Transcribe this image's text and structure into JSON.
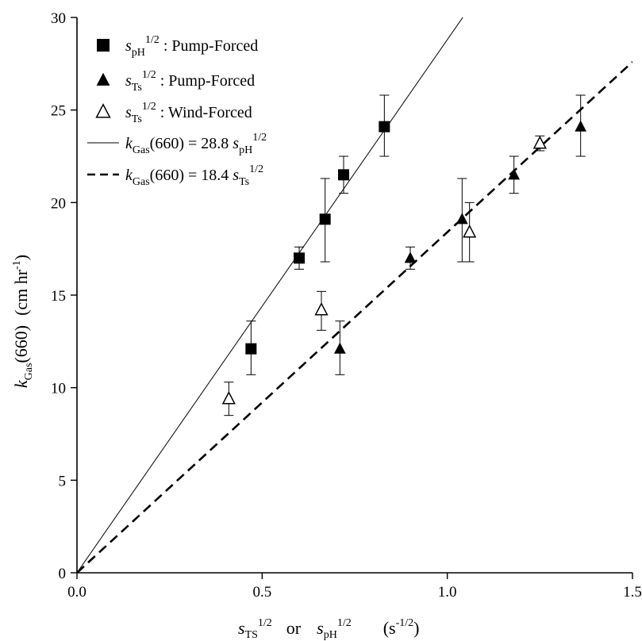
{
  "chart_data": {
    "type": "scatter",
    "xlim": [
      0,
      1.5
    ],
    "ylim": [
      0,
      30
    ],
    "x_ticks": [
      0,
      0.5,
      1,
      1.5
    ],
    "x_tick_labels": [
      "0.0",
      "0.5",
      "1.0",
      "1.5"
    ],
    "y_ticks": [
      0,
      5,
      10,
      15,
      20,
      25,
      30
    ],
    "y_tick_labels": [
      "0",
      "5",
      "10",
      "15",
      "20",
      "25",
      "30"
    ],
    "xlabel": {
      "part1_base": "s",
      "part1_sub": "TS",
      "part1_sup": "1/2",
      "or": "or",
      "part2_base": "s",
      "part2_sub": "pH",
      "part2_sup": "1/2",
      "unit_open": "(s",
      "unit_sup": "-1/2",
      "unit_close": ")"
    },
    "ylabel": {
      "base": "k",
      "sub": "Gas",
      "rest": "(660)",
      "unit_open": "(cm hr",
      "unit_sup": "-1",
      "unit_close": ")"
    },
    "grid": false,
    "legend_position": "top-left",
    "series": [
      {
        "marker": "filled-square",
        "legend": {
          "base": "s",
          "sub": "pH",
          "sup": "1/2",
          "text": " : Pump-Forced"
        },
        "points": [
          {
            "x": 0.47,
            "y": 12.1,
            "err_low": 10.7,
            "err_high": 13.6
          },
          {
            "x": 0.6,
            "y": 17.0,
            "err_low": 16.4,
            "err_high": 17.6
          },
          {
            "x": 0.67,
            "y": 19.1,
            "err_low": 16.8,
            "err_high": 21.3
          },
          {
            "x": 0.72,
            "y": 21.5,
            "err_low": 20.5,
            "err_high": 22.5
          },
          {
            "x": 0.83,
            "y": 24.1,
            "err_low": 22.5,
            "err_high": 25.8
          }
        ]
      },
      {
        "marker": "filled-triangle",
        "legend": {
          "base": "s",
          "sub": "Ts",
          "sup": "1/2",
          "text": " : Pump-Forced"
        },
        "points": [
          {
            "x": 0.71,
            "y": 12.1,
            "err_low": 10.7,
            "err_high": 13.6
          },
          {
            "x": 0.9,
            "y": 17.0,
            "err_low": 16.4,
            "err_high": 17.6
          },
          {
            "x": 1.04,
            "y": 19.1,
            "err_low": 16.8,
            "err_high": 21.3
          },
          {
            "x": 1.18,
            "y": 21.5,
            "err_low": 20.5,
            "err_high": 22.5
          },
          {
            "x": 1.36,
            "y": 24.1,
            "err_low": 22.5,
            "err_high": 25.8
          }
        ]
      },
      {
        "marker": "open-triangle",
        "legend": {
          "base": "s",
          "sub": "Ts",
          "sup": "1/2",
          "text": " : Wind-Forced"
        },
        "points": [
          {
            "x": 0.41,
            "y": 9.4,
            "err_low": 8.5,
            "err_high": 10.3
          },
          {
            "x": 0.66,
            "y": 14.2,
            "err_low": 13.1,
            "err_high": 15.2
          },
          {
            "x": 1.06,
            "y": 18.4,
            "err_low": 16.8,
            "err_high": 20.0
          },
          {
            "x": 1.25,
            "y": 23.2,
            "err_low": 22.8,
            "err_high": 23.6
          }
        ]
      }
    ],
    "fit_lines": [
      {
        "style": "solid",
        "slope": 28.8,
        "legend": {
          "k": "k",
          "sub": "Gas",
          "mid": "(660) = 28.8 ",
          "s": "s",
          "s_sub": "pH",
          "sup": "1/2"
        }
      },
      {
        "style": "dashed",
        "slope": 18.4,
        "legend": {
          "k": "k",
          "sub": "Gas",
          "mid": "(660) = 18.4 ",
          "s": "s",
          "s_sub": "Ts",
          "sup": "1/2"
        }
      }
    ]
  }
}
